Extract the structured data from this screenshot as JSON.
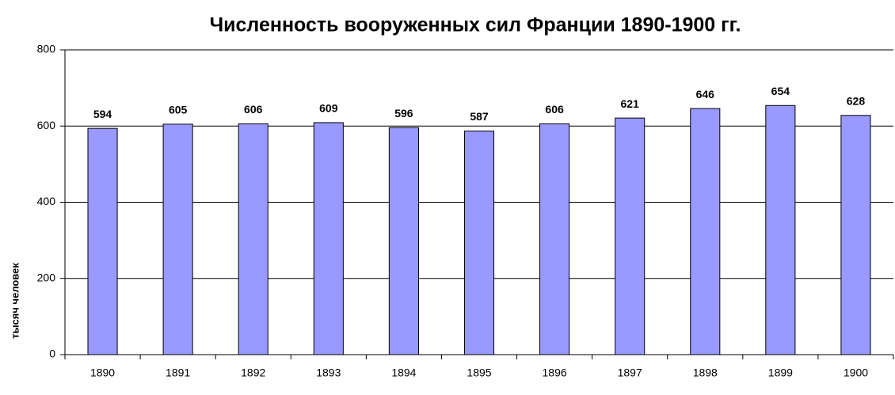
{
  "chart_data": {
    "type": "bar",
    "title": "Численность вооруженных сил Франции 1890-1900 гг.",
    "y_label": "тысяч человек",
    "categories": [
      "1890",
      "1891",
      "1892",
      "1893",
      "1894",
      "1895",
      "1896",
      "1897",
      "1898",
      "1899",
      "1900"
    ],
    "values": [
      594,
      605,
      606,
      609,
      596,
      587,
      606,
      621,
      646,
      654,
      628
    ],
    "color": "#9999ff",
    "ylim": [
      0,
      800
    ],
    "yticks": [
      0,
      200,
      400,
      600,
      800
    ],
    "grid": true
  }
}
